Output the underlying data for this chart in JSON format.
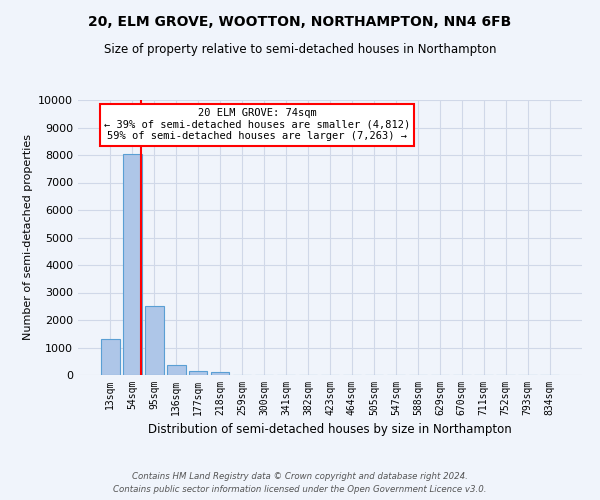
{
  "title": "20, ELM GROVE, WOOTTON, NORTHAMPTON, NN4 6FB",
  "subtitle": "Size of property relative to semi-detached houses in Northampton",
  "xlabel": "Distribution of semi-detached houses by size in Northampton",
  "ylabel": "Number of semi-detached properties",
  "footer_line1": "Contains HM Land Registry data © Crown copyright and database right 2024.",
  "footer_line2": "Contains public sector information licensed under the Open Government Licence v3.0.",
  "categories": [
    "13sqm",
    "54sqm",
    "95sqm",
    "136sqm",
    "177sqm",
    "218sqm",
    "259sqm",
    "300sqm",
    "341sqm",
    "382sqm",
    "423sqm",
    "464sqm",
    "505sqm",
    "547sqm",
    "588sqm",
    "629sqm",
    "670sqm",
    "711sqm",
    "752sqm",
    "793sqm",
    "834sqm"
  ],
  "values": [
    1300,
    8050,
    2520,
    370,
    140,
    120,
    0,
    0,
    0,
    0,
    0,
    0,
    0,
    0,
    0,
    0,
    0,
    0,
    0,
    0,
    0
  ],
  "bar_color": "#aec6e8",
  "bar_edge_color": "#5a9fd4",
  "grid_color": "#d0d8e8",
  "background_color": "#f0f4fb",
  "annotation_line1": "20 ELM GROVE: 74sqm",
  "annotation_line2": "← 39% of semi-detached houses are smaller (4,812)",
  "annotation_line3": "59% of semi-detached houses are larger (7,263) →",
  "annotation_box_color": "white",
  "annotation_box_edge_color": "red",
  "red_line_x": 1.38,
  "ylim": [
    0,
    10000
  ],
  "yticks": [
    0,
    1000,
    2000,
    3000,
    4000,
    5000,
    6000,
    7000,
    8000,
    9000,
    10000
  ]
}
